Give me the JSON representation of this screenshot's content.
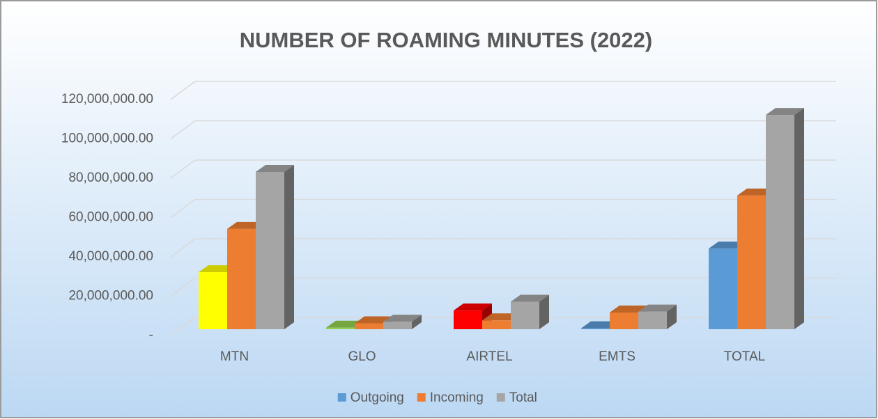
{
  "chart_data": {
    "type": "bar3d",
    "title": "NUMBER OF ROAMING MINUTES (2022)",
    "categories": [
      "MTN",
      "GLO",
      "AIRTEL",
      "EMTS",
      "TOTAL"
    ],
    "series": [
      {
        "name": "Outgoing",
        "color": "#5b9bd5",
        "point_colors": [
          "#ffff00",
          "#92d050",
          "#ff0000",
          "#5b9bd5",
          "#5b9bd5"
        ],
        "values": [
          29000000,
          800000,
          9500000,
          500000,
          41000000
        ]
      },
      {
        "name": "Incoming",
        "color": "#ed7d31",
        "values": [
          51000000,
          3000000,
          4500000,
          8500000,
          68000000
        ]
      },
      {
        "name": "Total",
        "color": "#a5a5a5",
        "values": [
          80000000,
          3800000,
          14000000,
          9000000,
          109000000
        ]
      }
    ],
    "ylim": [
      0,
      120000000
    ],
    "yticks": [
      {
        "value": 0,
        "label": "-"
      },
      {
        "value": 20000000,
        "label": "20,000,000.00"
      },
      {
        "value": 40000000,
        "label": "40,000,000.00"
      },
      {
        "value": 60000000,
        "label": "60,000,000.00"
      },
      {
        "value": 80000000,
        "label": "80,000,000.00"
      },
      {
        "value": 100000000,
        "label": "100,000,000.00"
      },
      {
        "value": 120000000,
        "label": "120,000,000.00"
      }
    ],
    "grid": true,
    "legend": "bottom"
  }
}
